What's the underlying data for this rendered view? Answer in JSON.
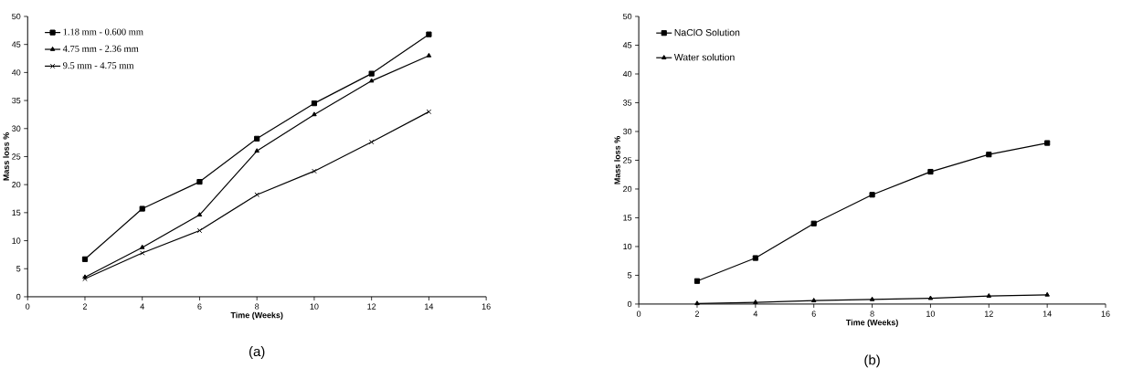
{
  "chart_data": [
    {
      "type": "line",
      "xlabel": "Time (Weeks)",
      "ylabel": "Mass loss %",
      "x": [
        2,
        4,
        6,
        8,
        10,
        12,
        14
      ],
      "xlim": [
        0,
        16
      ],
      "xticks": [
        0,
        2,
        4,
        6,
        8,
        10,
        12,
        14,
        16
      ],
      "ylim": [
        0,
        50
      ],
      "yticks": [
        0,
        5,
        10,
        15,
        20,
        25,
        30,
        35,
        40,
        45,
        50
      ],
      "grid": false,
      "legend": "top left",
      "line_style": "solid",
      "annotations": [
        "(a)"
      ],
      "series": [
        {
          "name": "1.18 mm - 0.600 mm",
          "color": "#000000",
          "marker": "square",
          "values": [
            6.7,
            15.7,
            20.5,
            28.2,
            34.5,
            39.8,
            46.8
          ]
        },
        {
          "name": "4.75 mm - 2.36 mm",
          "color": "#000000",
          "marker": "triangle",
          "values": [
            3.5,
            8.8,
            14.6,
            26,
            32.5,
            38.5,
            43
          ]
        },
        {
          "name": "9.5 mm - 4.75 mm",
          "color": "#000000",
          "marker": "cross",
          "values": [
            3.2,
            7.8,
            11.8,
            18.2,
            22.4,
            27.6,
            33
          ]
        }
      ]
    },
    {
      "type": "line",
      "xlabel": "Time (Weeks)",
      "ylabel": "Mass loss %",
      "x": [
        2,
        4,
        6,
        8,
        10,
        12,
        14
      ],
      "xlim": [
        0,
        16
      ],
      "xticks": [
        0,
        2,
        4,
        6,
        8,
        10,
        12,
        14,
        16
      ],
      "ylim": [
        0,
        50
      ],
      "yticks": [
        0,
        5,
        10,
        15,
        20,
        25,
        30,
        35,
        40,
        45,
        50
      ],
      "grid": false,
      "legend": "top left",
      "line_style": "solid",
      "annotations": [
        "(b)"
      ],
      "series": [
        {
          "name": "NaClO Solution",
          "color": "#000000",
          "marker": "square",
          "values": [
            4,
            8,
            14,
            19,
            23,
            26,
            28
          ]
        },
        {
          "name": "Water solution",
          "color": "#000000",
          "marker": "triangle",
          "values": [
            0.1,
            0.3,
            0.6,
            0.8,
            1.0,
            1.4,
            1.6
          ]
        }
      ]
    }
  ]
}
